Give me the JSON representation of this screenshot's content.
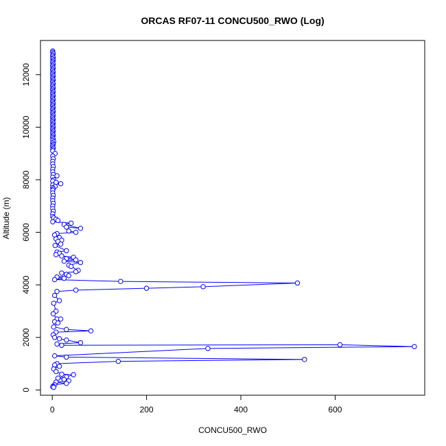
{
  "chart_data": {
    "type": "scatter",
    "title": "ORCAS RF07-11 CONCU500_RWO (Log)",
    "xlabel": "CONCU500_RWO",
    "ylabel": "Altitude (m)",
    "xlim": [
      -25,
      790
    ],
    "ylim": [
      -200,
      13300
    ],
    "x_ticks": [
      0,
      200,
      400,
      600
    ],
    "y_ticks": [
      0,
      2000,
      4000,
      6000,
      8000,
      10000,
      12000
    ],
    "grid": false,
    "legend": "none",
    "series": [
      {
        "color": "#0000ff",
        "line": true,
        "marker": "open-circle",
        "points": [
          [
            1,
            12900
          ],
          [
            1,
            12850
          ],
          [
            2,
            12800
          ],
          [
            1,
            12750
          ],
          [
            1,
            12700
          ],
          [
            2,
            12650
          ],
          [
            1,
            12600
          ],
          [
            2,
            12550
          ],
          [
            1,
            12500
          ],
          [
            1,
            12450
          ],
          [
            2,
            12400
          ],
          [
            1,
            12350
          ],
          [
            1,
            12300
          ],
          [
            2,
            12250
          ],
          [
            1,
            12200
          ],
          [
            1,
            12150
          ],
          [
            2,
            12100
          ],
          [
            1,
            12050
          ],
          [
            1,
            12000
          ],
          [
            2,
            11950
          ],
          [
            1,
            11900
          ],
          [
            1,
            11850
          ],
          [
            2,
            11800
          ],
          [
            1,
            11750
          ],
          [
            1,
            11700
          ],
          [
            2,
            11650
          ],
          [
            1,
            11600
          ],
          [
            1,
            11550
          ],
          [
            2,
            11500
          ],
          [
            1,
            11450
          ],
          [
            1,
            11400
          ],
          [
            2,
            11350
          ],
          [
            1,
            11300
          ],
          [
            1,
            11250
          ],
          [
            2,
            11200
          ],
          [
            1,
            11150
          ],
          [
            1,
            11100
          ],
          [
            2,
            11050
          ],
          [
            1,
            11000
          ],
          [
            1,
            10950
          ],
          [
            2,
            10900
          ],
          [
            1,
            10850
          ],
          [
            1,
            10800
          ],
          [
            2,
            10750
          ],
          [
            1,
            10700
          ],
          [
            1,
            10650
          ],
          [
            2,
            10600
          ],
          [
            1,
            10550
          ],
          [
            1,
            10500
          ],
          [
            2,
            10450
          ],
          [
            1,
            10400
          ],
          [
            1,
            10350
          ],
          [
            2,
            10300
          ],
          [
            1,
            10250
          ],
          [
            1,
            10200
          ],
          [
            2,
            10150
          ],
          [
            1,
            10100
          ],
          [
            1,
            10050
          ],
          [
            2,
            10000
          ],
          [
            1,
            9950
          ],
          [
            1,
            9900
          ],
          [
            2,
            9850
          ],
          [
            1,
            9800
          ],
          [
            1,
            9750
          ],
          [
            2,
            9700
          ],
          [
            1,
            9650
          ],
          [
            1,
            9600
          ],
          [
            2,
            9550
          ],
          [
            1,
            9500
          ],
          [
            3,
            9450
          ],
          [
            1,
            9400
          ],
          [
            2,
            9350
          ],
          [
            1,
            9300
          ],
          [
            1,
            9250
          ],
          [
            2,
            9200
          ],
          [
            1,
            9150
          ],
          [
            1,
            9100
          ],
          [
            6,
            9000
          ],
          [
            1,
            8900
          ],
          [
            2,
            8800
          ],
          [
            1,
            8700
          ],
          [
            1,
            8600
          ],
          [
            2,
            8500
          ],
          [
            1,
            8400
          ],
          [
            1,
            8300
          ],
          [
            2,
            8200
          ],
          [
            10,
            8150
          ],
          [
            1,
            8100
          ],
          [
            3,
            8000
          ],
          [
            1,
            7950
          ],
          [
            8,
            7900
          ],
          [
            18,
            7850
          ],
          [
            1,
            7800
          ],
          [
            6,
            7750
          ],
          [
            1,
            7700
          ],
          [
            2,
            7650
          ],
          [
            1,
            7600
          ],
          [
            1,
            7500
          ],
          [
            2,
            7400
          ],
          [
            1,
            7300
          ],
          [
            1,
            7200
          ],
          [
            2,
            7100
          ],
          [
            1,
            7000
          ],
          [
            1,
            6900
          ],
          [
            2,
            6800
          ],
          [
            1,
            6700
          ],
          [
            1,
            6600
          ],
          [
            3,
            6550
          ],
          [
            8,
            6500
          ],
          [
            12,
            6450
          ],
          [
            1,
            6400
          ],
          [
            40,
            6350
          ],
          [
            25,
            6300
          ],
          [
            60,
            6150
          ],
          [
            30,
            6200
          ],
          [
            35,
            6050
          ],
          [
            50,
            6000
          ],
          [
            10,
            5950
          ],
          [
            5,
            5900
          ],
          [
            15,
            5800
          ],
          [
            8,
            5750
          ],
          [
            20,
            5700
          ],
          [
            12,
            5650
          ],
          [
            18,
            5550
          ],
          [
            6,
            5500
          ],
          [
            30,
            5300
          ],
          [
            10,
            5250
          ],
          [
            15,
            5200
          ],
          [
            8,
            5150
          ],
          [
            20,
            5100
          ],
          [
            45,
            5050
          ],
          [
            30,
            5000
          ],
          [
            50,
            4950
          ],
          [
            25,
            4900
          ],
          [
            60,
            4850
          ],
          [
            35,
            4750
          ],
          [
            40,
            4700
          ],
          [
            55,
            4550
          ],
          [
            50,
            4500
          ],
          [
            20,
            4450
          ],
          [
            30,
            4400
          ],
          [
            35,
            4350
          ],
          [
            10,
            4300
          ],
          [
            25,
            4250
          ],
          [
            5,
            4200
          ],
          [
            145,
            4130
          ],
          [
            520,
            4070
          ],
          [
            320,
            3930
          ],
          [
            200,
            3870
          ],
          [
            50,
            3800
          ],
          [
            10,
            3750
          ],
          [
            5,
            3600
          ],
          [
            15,
            3400
          ],
          [
            3,
            3300
          ],
          [
            8,
            3000
          ],
          [
            2,
            2900
          ],
          [
            10,
            2700
          ],
          [
            18,
            2700
          ],
          [
            5,
            2600
          ],
          [
            12,
            2550
          ],
          [
            3,
            2400
          ],
          [
            30,
            2300
          ],
          [
            82,
            2250
          ],
          [
            8,
            2200
          ],
          [
            2,
            2100
          ],
          [
            5,
            2000
          ],
          [
            15,
            1950
          ],
          [
            30,
            1900
          ],
          [
            60,
            1800
          ],
          [
            10,
            1750
          ],
          [
            20,
            1700
          ],
          [
            610,
            1720
          ],
          [
            768,
            1650
          ],
          [
            330,
            1580
          ],
          [
            5,
            1300
          ],
          [
            30,
            1250
          ],
          [
            535,
            1160
          ],
          [
            140,
            1090
          ],
          [
            10,
            1000
          ],
          [
            5,
            950
          ],
          [
            15,
            900
          ],
          [
            3,
            800
          ],
          [
            8,
            700
          ],
          [
            20,
            600
          ],
          [
            45,
            580
          ],
          [
            30,
            500
          ],
          [
            12,
            450
          ],
          [
            25,
            400
          ],
          [
            35,
            350
          ],
          [
            8,
            300
          ],
          [
            30,
            250
          ],
          [
            5,
            200
          ],
          [
            2,
            150
          ],
          [
            1,
            120
          ],
          [
            3,
            100
          ]
        ]
      }
    ]
  }
}
